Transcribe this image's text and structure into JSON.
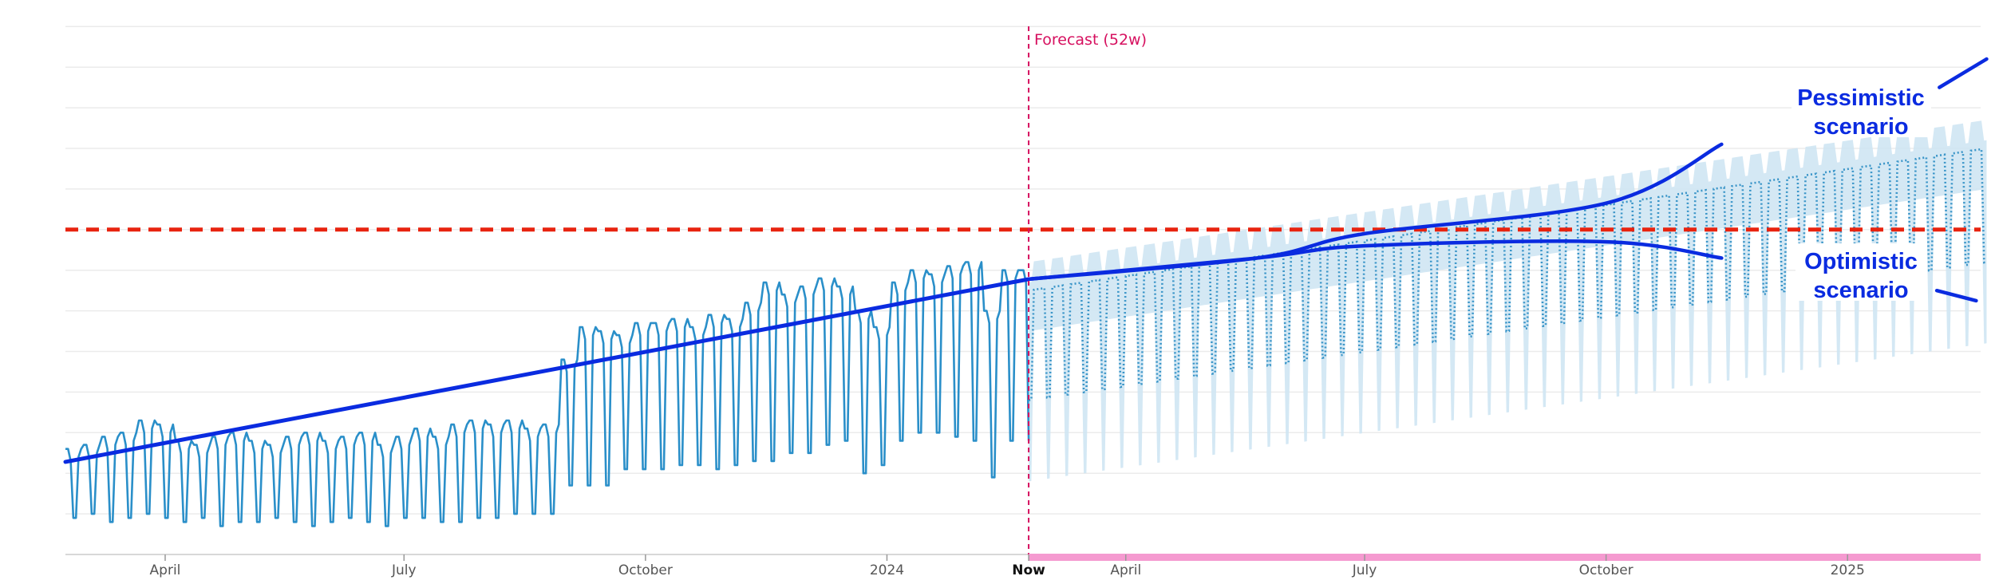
{
  "chart_data": {
    "type": "line",
    "title": "",
    "xlabel": "",
    "ylabel": "",
    "y_axis_labels_shown": false,
    "ylim": [
      0,
      130
    ],
    "y_gridlines": [
      0,
      10,
      20,
      30,
      40,
      50,
      60,
      70,
      80,
      90,
      100,
      110,
      120,
      130
    ],
    "grid": true,
    "x_range": [
      "2023-02-22",
      "2025-02-23"
    ],
    "x_ticks": [
      {
        "date": "2023-04-01",
        "label": "April"
      },
      {
        "date": "2023-07-01",
        "label": "July"
      },
      {
        "date": "2023-10-01",
        "label": "October"
      },
      {
        "date": "2024-01-01",
        "label": "2024"
      },
      {
        "date": "2024-04-01",
        "label": "April"
      },
      {
        "date": "2024-07-01",
        "label": "July"
      },
      {
        "date": "2024-10-01",
        "label": "October"
      },
      {
        "date": "2025-01-01",
        "label": "2025"
      }
    ],
    "now": {
      "date": "2024-02-24",
      "label": "Now"
    },
    "forecast_label": "Forecast (52w)",
    "history": {
      "start_date": "2023-02-22",
      "granularity": "daily, weekday highs / weekend lows, summarized per week",
      "weekly_highs": [
        26,
        27,
        29,
        30,
        33,
        32,
        28,
        27,
        29,
        30,
        28,
        27,
        29,
        30,
        28,
        29,
        30,
        27,
        29,
        31,
        29,
        32,
        33,
        32,
        33,
        31,
        32,
        48,
        56,
        55,
        54,
        57,
        57,
        58,
        56,
        59,
        58,
        62,
        67,
        64,
        66,
        68,
        66,
        60,
        56,
        67,
        70,
        69,
        71,
        72,
        60,
        70
      ],
      "weekly_lows": [
        9,
        10,
        8,
        9,
        10,
        9,
        8,
        9,
        7,
        8,
        8,
        9,
        8,
        7,
        8,
        9,
        8,
        7,
        9,
        9,
        8,
        8,
        9,
        9,
        10,
        10,
        10,
        17,
        17,
        17,
        21,
        21,
        21,
        22,
        22,
        21,
        22,
        23,
        23,
        25,
        25,
        27,
        28,
        20,
        22,
        28,
        30,
        30,
        29,
        28,
        19,
        28
      ]
    },
    "forecast": {
      "start_date": "2024-02-24",
      "end_date": "2025-02-23",
      "median_weekday": [
        65,
        100
      ],
      "median_weekend": [
        38,
        72
      ],
      "upper_bound": [
        72,
        107
      ],
      "lower_bound": [
        18,
        52
      ]
    },
    "threshold": {
      "value": 80,
      "style": "dashed"
    },
    "trend_history": [
      [
        "2023-02-22",
        22.8
      ],
      [
        "2024-02-24",
        67.8
      ]
    ],
    "scenarios": [
      {
        "label": "Pessimistic scenario",
        "points": [
          [
            "2024-02-24",
            67.8
          ],
          [
            "2024-05-21",
            73
          ],
          [
            "2024-07-01",
            79
          ],
          [
            "2024-10-01",
            86.5
          ],
          [
            "2024-11-14",
            101
          ]
        ],
        "leader": [
          [
            "2025-02-05",
            115
          ],
          [
            "2025-02-23",
            122
          ]
        ]
      },
      {
        "label": "Optimistic scenario",
        "points": [
          [
            "2024-02-24",
            67.8
          ],
          [
            "2024-05-21",
            73
          ],
          [
            "2024-07-01",
            76
          ],
          [
            "2024-10-01",
            77
          ],
          [
            "2024-11-14",
            73
          ]
        ],
        "leader": [
          [
            "2025-02-04",
            65
          ],
          [
            "2025-02-19",
            62.5
          ]
        ]
      }
    ],
    "colors": {
      "history": "#2a8fc9",
      "forecast_median": "#3a95c8",
      "forecast_band": "#cfe5f3",
      "trend": "#0a2be0",
      "threshold": "#e8230f",
      "now_line": "#d6105f",
      "forecast_bar": "#f59ad0",
      "gridline": "#ebebeb"
    }
  }
}
